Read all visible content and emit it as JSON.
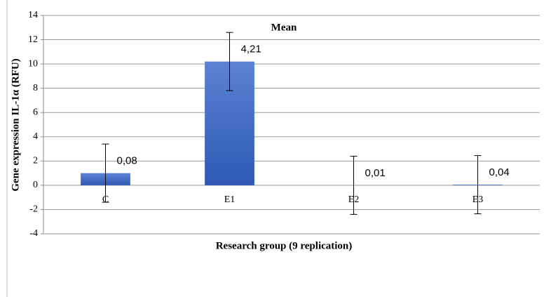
{
  "chart_data": {
    "type": "bar",
    "title": "Mean",
    "x_label": "Research group (9 replication)",
    "y_label": "Gene expression IL-1α (RFU)",
    "categories": [
      "C",
      "E1",
      "E2",
      "E3"
    ],
    "values": [
      1.0,
      10.2,
      0.0,
      0.05
    ],
    "errors": [
      2.4,
      2.4,
      2.4,
      2.4
    ],
    "annotations": [
      "0,08",
      "4,21",
      "0,01",
      "0,04"
    ],
    "color": "#3d67c2",
    "ylim": [
      -4,
      14
    ],
    "yticks": [
      -4,
      -2,
      0,
      2,
      4,
      6,
      8,
      10,
      12,
      14
    ],
    "grid": true
  }
}
